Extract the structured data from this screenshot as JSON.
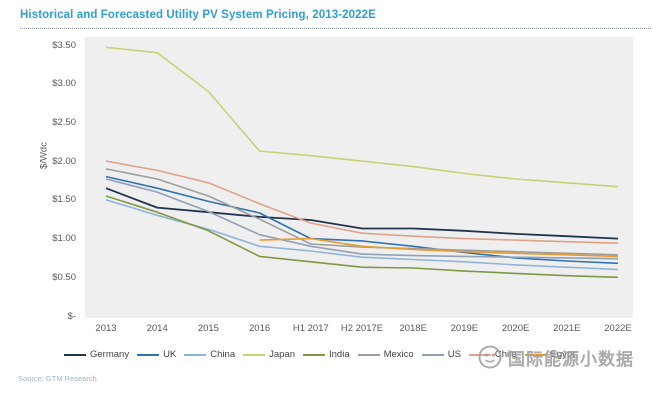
{
  "page": {
    "title": "Historical and Forecasted Utility PV System Pricing, 2013-2022E",
    "title_color": "#2e9fd6",
    "source": "Source: GTM Research",
    "watermark_text": "国际能源小数据"
  },
  "chart_data": {
    "type": "line",
    "title": "Historical and Forecasted Utility PV System Pricing, 2013-2022E",
    "xlabel": "",
    "ylabel": "$/Wdc",
    "ylim": [
      0,
      3.5
    ],
    "y_ticks": [
      {
        "label": "$3.50",
        "value": 3.5
      },
      {
        "label": "$3.00",
        "value": 3.0
      },
      {
        "label": "$2.50",
        "value": 2.5
      },
      {
        "label": "$2.00",
        "value": 2.0
      },
      {
        "label": "$1.50",
        "value": 1.5
      },
      {
        "label": "$1.00",
        "value": 1.0
      },
      {
        "label": "$0.50",
        "value": 0.5
      },
      {
        "label": "$-",
        "value": 0.0
      }
    ],
    "categories": [
      "2013",
      "2014",
      "2015",
      "2016",
      "H1 2017",
      "H2 2017E",
      "2018E",
      "2019E",
      "2020E",
      "2021E",
      "2022E"
    ],
    "grid": false,
    "legend_position": "bottom",
    "plot_bg": "#f0eff0",
    "series": [
      {
        "name": "Germany",
        "color": "#20344e",
        "width": 1.8,
        "values": [
          1.65,
          1.4,
          1.34,
          1.28,
          1.24,
          1.13,
          1.13,
          1.1,
          1.06,
          1.03,
          1.0
        ]
      },
      {
        "name": "UK",
        "color": "#2e74b5",
        "width": 1.6,
        "values": [
          1.8,
          1.65,
          1.48,
          1.33,
          1.0,
          0.97,
          0.9,
          0.82,
          0.75,
          0.71,
          0.68
        ]
      },
      {
        "name": "China",
        "color": "#8fb4da",
        "width": 1.6,
        "values": [
          1.5,
          1.3,
          1.12,
          0.9,
          0.84,
          0.76,
          0.73,
          0.7,
          0.66,
          0.63,
          0.6
        ]
      },
      {
        "name": "Japan",
        "color": "#c9d175",
        "width": 1.6,
        "values": [
          3.47,
          3.4,
          2.9,
          2.13,
          2.07,
          2.0,
          1.93,
          1.84,
          1.77,
          1.72,
          1.67
        ]
      },
      {
        "name": "India",
        "color": "#7f9a44",
        "width": 1.6,
        "values": [
          1.55,
          1.34,
          1.1,
          0.77,
          0.7,
          0.63,
          0.62,
          0.58,
          0.55,
          0.52,
          0.5
        ]
      },
      {
        "name": "Mexico",
        "color": "#9e9e9e",
        "width": 1.6,
        "values": [
          1.9,
          1.77,
          1.55,
          1.25,
          0.93,
          0.89,
          0.87,
          0.85,
          0.83,
          0.81,
          0.79
        ]
      },
      {
        "name": "US",
        "color": "#90a0b5",
        "width": 1.6,
        "values": [
          1.77,
          1.6,
          1.35,
          1.05,
          0.9,
          0.8,
          0.78,
          0.77,
          0.76,
          0.75,
          0.74
        ]
      },
      {
        "name": "Chile",
        "color": "#dfa38a",
        "width": 1.6,
        "values": [
          2.0,
          1.88,
          1.72,
          1.45,
          1.2,
          1.07,
          1.03,
          1.0,
          0.98,
          0.96,
          0.94
        ]
      },
      {
        "name": "Egypt",
        "color": "#e89c2f",
        "width": 1.6,
        "values": [
          null,
          null,
          null,
          0.98,
          1.0,
          0.9,
          0.86,
          0.83,
          0.81,
          0.79,
          0.77
        ]
      }
    ]
  }
}
